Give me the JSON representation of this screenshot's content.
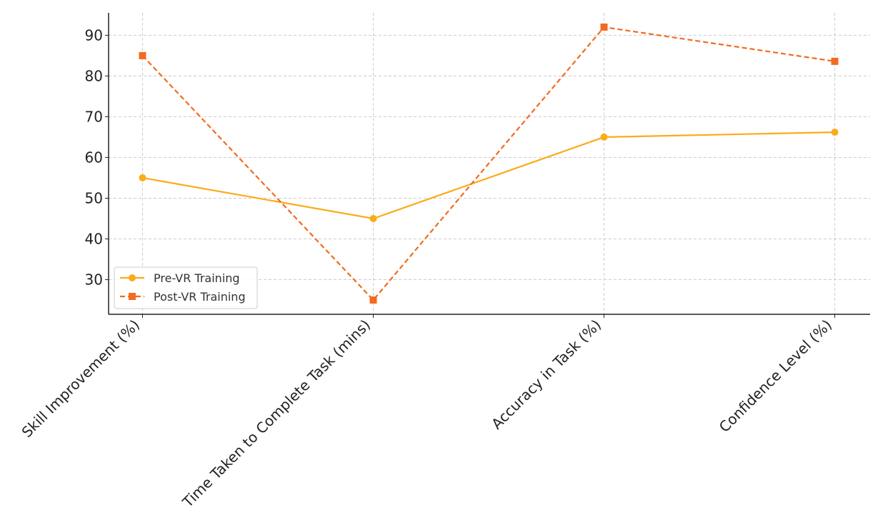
{
  "chart_data": {
    "type": "line",
    "categories": [
      "Skill Improvement (%)",
      "Time Taken to Complete Task (mins)",
      "Accuracy in Task (%)",
      "Confidence Level (%)"
    ],
    "series": [
      {
        "name": "Pre-VR Training",
        "values": [
          55,
          45,
          65,
          66.2
        ],
        "color": "#fbab18",
        "line_style": "solid",
        "marker": "circle"
      },
      {
        "name": "Post-VR Training",
        "values": [
          85,
          25,
          92,
          83.6
        ],
        "color": "#f26b21",
        "line_style": "dashed",
        "marker": "square"
      }
    ],
    "ylim": [
      21.5,
      95.5
    ],
    "yticks": [
      30,
      40,
      50,
      60,
      70,
      80,
      90
    ],
    "title": "",
    "xlabel": "",
    "ylabel": "",
    "grid": true,
    "legend_position": "lower-left"
  }
}
